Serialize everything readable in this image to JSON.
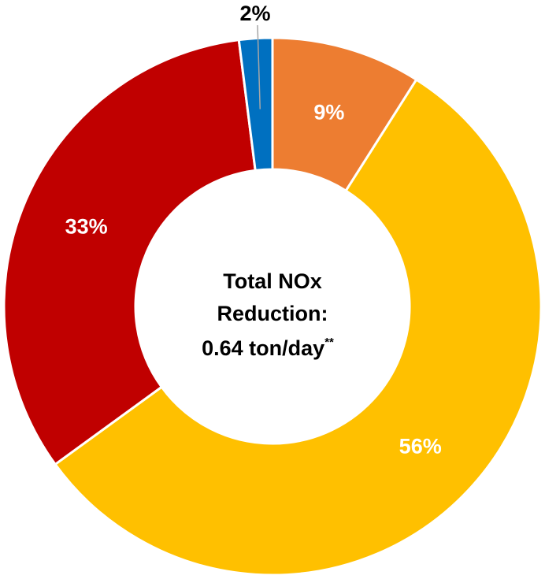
{
  "chart_data": {
    "type": "pie",
    "style": "donut",
    "categories": [
      "",
      "",
      "",
      ""
    ],
    "values": [
      9,
      56,
      33,
      2
    ],
    "labels": [
      "9%",
      "56%",
      "33%",
      "2%"
    ],
    "colors": [
      "#ED7D31",
      "#FFC000",
      "#C00000",
      "#0070C0"
    ],
    "label_colors": [
      "#ffffff",
      "#ffffff",
      "#ffffff",
      "#000000"
    ],
    "start_angle_deg": 0,
    "direction": "clockwise",
    "center_text": {
      "line1": "Total NOx",
      "line2": "Reduction:",
      "line3": "0.64 ton/day",
      "line3_sup": "**"
    }
  }
}
